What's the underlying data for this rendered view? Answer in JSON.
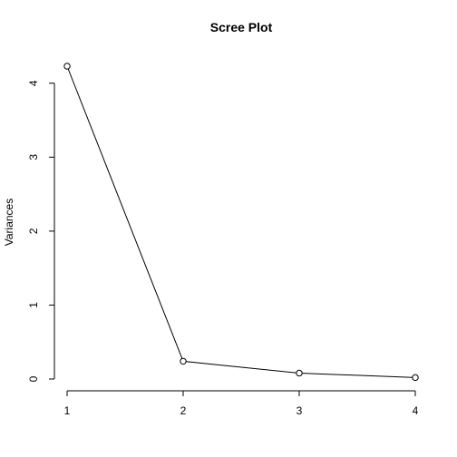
{
  "chart_data": {
    "type": "line",
    "title": "Scree Plot",
    "xlabel": "",
    "ylabel": "Variances",
    "x": [
      1,
      2,
      3,
      4
    ],
    "values": [
      4.23,
      0.24,
      0.08,
      0.02
    ],
    "xlim": [
      1,
      4
    ],
    "ylim": [
      0,
      4.23
    ],
    "xticks": [
      1,
      2,
      3,
      4
    ],
    "yticks": [
      0,
      1,
      2,
      3,
      4
    ],
    "markers": "open-circle",
    "grid": false,
    "legend": "none"
  }
}
